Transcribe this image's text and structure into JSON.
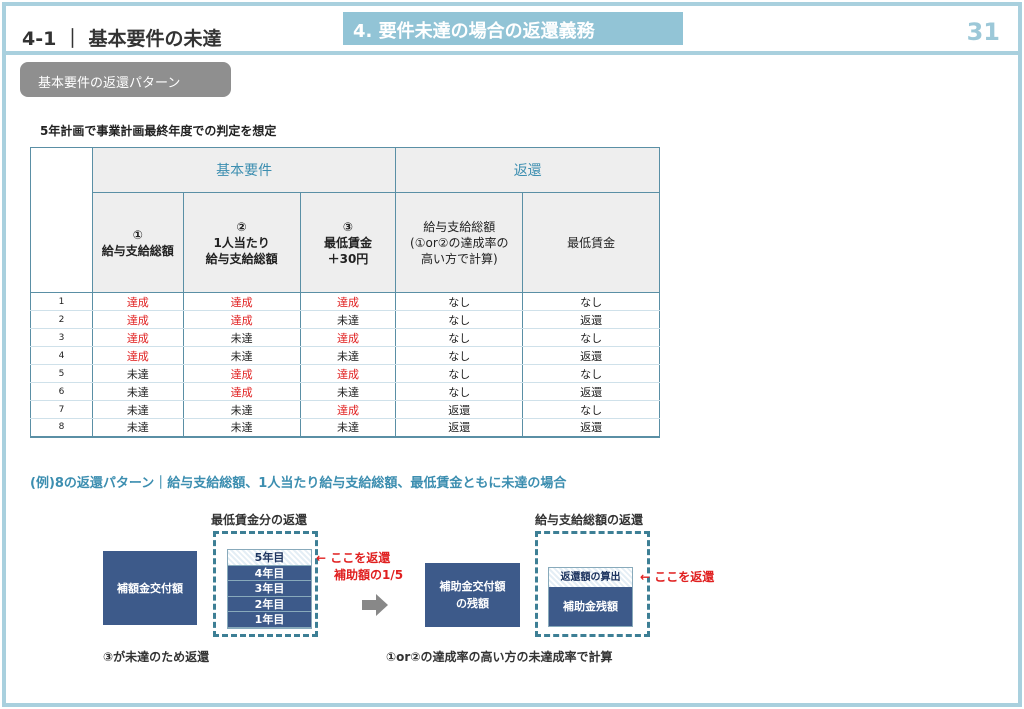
{
  "header": {
    "section": "4-1 ｜ 基本要件の未達",
    "banner": "4. 要件未達の場合の返還義務",
    "page": "31"
  },
  "pill": "基本要件の返還パターン",
  "note": "5年計画で事業計画最終年度での判定を想定",
  "table": {
    "group1": "基本要件",
    "group2": "返還",
    "cols": [
      [
        "①",
        "給与支給総額"
      ],
      [
        "②",
        "1人当たり",
        "給与支給総額"
      ],
      [
        "③",
        "最低賃金",
        "＋30円"
      ],
      [
        "給与支給総額",
        "(①or②の達成率の",
        "高い方で計算)"
      ],
      [
        "最低賃金"
      ]
    ],
    "rows": [
      [
        "1",
        "達成",
        "達成",
        "達成",
        "なし",
        "なし"
      ],
      [
        "2",
        "達成",
        "達成",
        "未達",
        "なし",
        "返還"
      ],
      [
        "3",
        "達成",
        "未達",
        "達成",
        "なし",
        "なし"
      ],
      [
        "4",
        "達成",
        "未達",
        "未達",
        "なし",
        "返還"
      ],
      [
        "5",
        "未達",
        "達成",
        "達成",
        "なし",
        "なし"
      ],
      [
        "6",
        "未達",
        "達成",
        "未達",
        "なし",
        "返還"
      ],
      [
        "7",
        "未達",
        "未達",
        "達成",
        "返還",
        "なし"
      ],
      [
        "8",
        "未達",
        "未達",
        "未達",
        "返還",
        "返還"
      ]
    ]
  },
  "example": {
    "heading": "(例)8の返還パターン｜給与支給総額、1人当たり給与支給総額、最低賃金ともに未達の場合",
    "box1": "補額金交付額",
    "label1": "最低賃金分の返還",
    "years": [
      "5年目",
      "4年目",
      "3年目",
      "2年目",
      "1年目"
    ],
    "red1a": "← ここを返還",
    "red1b": "補助額の1/5",
    "caption1": "③が未達のため返還",
    "box2": [
      "補助金交付額",
      "の残額"
    ],
    "label2": "給与支給総額の返還",
    "inner_top": "返還額の算出",
    "inner_bottom": "補助金残額",
    "red2": "← ここを返還",
    "caption2": "①or②の達成率の高い方の未達成率で計算"
  }
}
